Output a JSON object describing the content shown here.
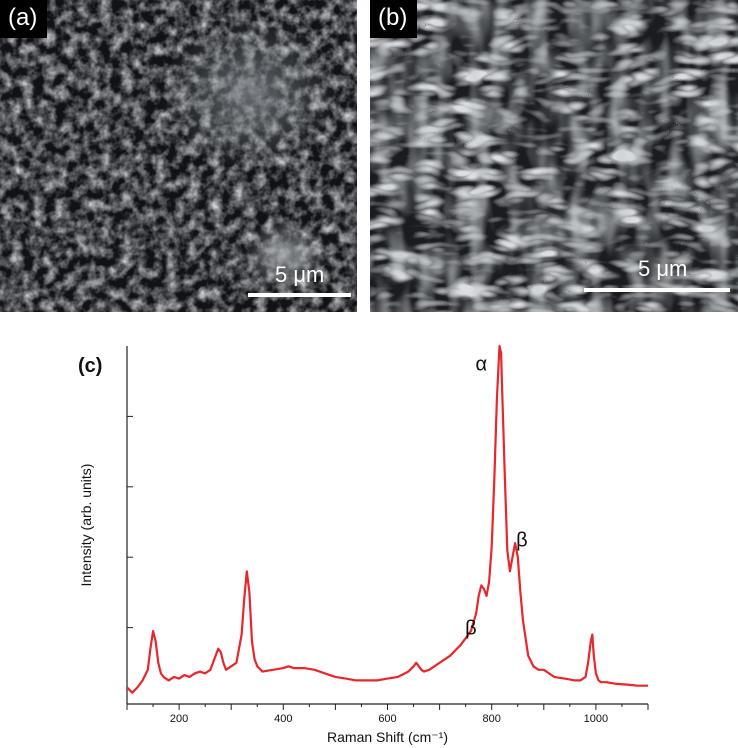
{
  "panel_a": {
    "label": "(a)",
    "scale_label": "5 μm"
  },
  "panel_b": {
    "label": "(b)",
    "scale_label": "5 μm"
  },
  "panel_c": {
    "label": "(c)"
  },
  "chart_data": {
    "type": "line",
    "xlabel": "Raman Shift (cm⁻¹)",
    "ylabel": "Intensity (arb. units)",
    "xlim": [
      100,
      1100
    ],
    "ylim": [
      0,
      100
    ],
    "x_ticks": [
      200,
      400,
      600,
      800,
      1000
    ],
    "y_tick_labels_shown": false,
    "series": [
      {
        "color": "#e8262b",
        "x": [
          100,
          110,
          120,
          130,
          140,
          145,
          150,
          155,
          160,
          165,
          170,
          180,
          190,
          200,
          210,
          220,
          230,
          240,
          250,
          260,
          270,
          275,
          280,
          285,
          290,
          300,
          310,
          320,
          325,
          330,
          335,
          340,
          345,
          350,
          360,
          380,
          400,
          410,
          420,
          440,
          460,
          480,
          500,
          520,
          540,
          560,
          580,
          600,
          620,
          640,
          650,
          655,
          660,
          665,
          670,
          680,
          700,
          720,
          740,
          750,
          760,
          770,
          775,
          780,
          785,
          790,
          795,
          800,
          805,
          810,
          815,
          818,
          820,
          825,
          830,
          835,
          840,
          845,
          850,
          855,
          860,
          870,
          880,
          890,
          900,
          920,
          940,
          960,
          970,
          980,
          985,
          990,
          993,
          996,
          1000,
          1005,
          1010,
          1020,
          1040,
          1060,
          1080,
          1100
        ],
        "values": [
          3,
          1.5,
          3,
          5,
          8,
          14,
          19,
          16,
          10,
          7,
          6,
          5,
          6,
          5.5,
          6.5,
          6,
          7,
          7.5,
          7,
          8,
          12,
          14,
          13,
          10,
          8,
          9,
          10,
          18,
          28,
          36,
          30,
          16,
          11,
          9,
          7.5,
          8,
          8.5,
          9,
          8.5,
          8.5,
          8,
          7,
          6,
          5.5,
          5,
          5,
          5,
          5.5,
          6,
          7.5,
          9,
          10,
          9,
          8,
          7.5,
          8,
          10,
          12,
          15,
          17,
          19,
          24,
          29,
          32,
          31,
          29,
          33,
          43,
          62,
          85,
          100,
          98,
          88,
          64,
          42,
          36,
          40,
          44,
          40,
          30,
          22,
          12,
          9,
          8,
          8,
          6,
          5.5,
          5,
          5,
          6,
          10,
          16,
          18,
          12,
          7,
          5,
          4.5,
          4.5,
          4,
          3.8,
          3.5,
          3.5
        ]
      }
    ],
    "annotations": [
      {
        "text": "α",
        "x": 780,
        "y": 93
      },
      {
        "text": "β",
        "x": 858,
        "y": 43
      },
      {
        "text": "β",
        "x": 760,
        "y": 18
      }
    ]
  }
}
